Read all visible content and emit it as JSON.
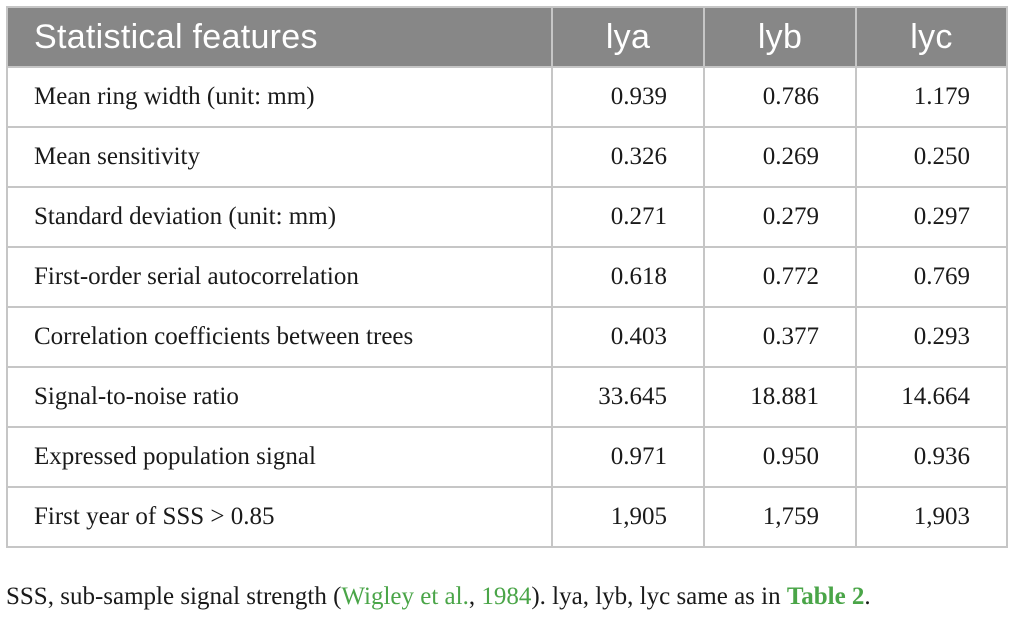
{
  "table": {
    "headers": [
      "Statistical features",
      "lya",
      "lyb",
      "lyc"
    ],
    "rows": [
      {
        "label": "Mean ring width (unit: mm)",
        "values": [
          "0.939",
          "0.786",
          "1.179"
        ]
      },
      {
        "label": "Mean sensitivity",
        "values": [
          "0.326",
          "0.269",
          "0.250"
        ]
      },
      {
        "label": "Standard deviation (unit: mm)",
        "values": [
          "0.271",
          "0.279",
          "0.297"
        ]
      },
      {
        "label": "First-order serial autocorrelation",
        "values": [
          "0.618",
          "0.772",
          "0.769"
        ]
      },
      {
        "label": "Correlation coefficients between trees",
        "values": [
          "0.403",
          "0.377",
          "0.293"
        ]
      },
      {
        "label": "Signal-to-noise ratio",
        "values": [
          "33.645",
          "18.881",
          "14.664"
        ]
      },
      {
        "label": "Expressed population signal",
        "values": [
          "0.971",
          "0.950",
          "0.936"
        ]
      },
      {
        "label": "First year of SSS > 0.85",
        "values": [
          "1,905",
          "1,759",
          "1,903"
        ]
      }
    ]
  },
  "footnote": {
    "part1": "SSS, sub-sample signal strength (",
    "citation_authors": "Wigley et al.",
    "separator": ", ",
    "citation_year": "1984",
    "part2": "). lya, lyb, lyc same as in ",
    "table_ref": "Table 2",
    "part3": "."
  },
  "colors": {
    "header_bg": "#878787",
    "header_text": "#ffffff",
    "grid": "#c6c6c6",
    "link": "#4aa548"
  }
}
